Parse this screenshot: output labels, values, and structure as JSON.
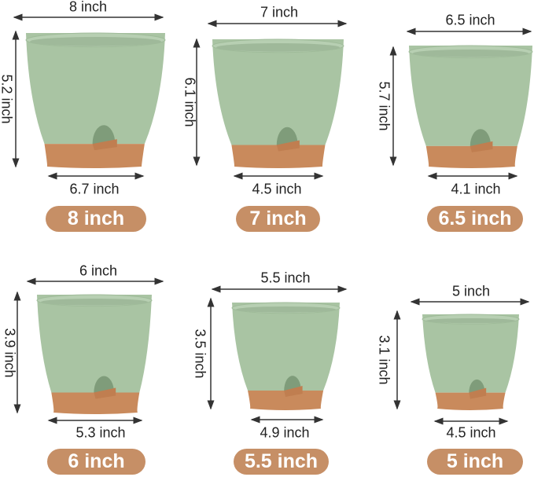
{
  "colors": {
    "pot_green": "#a9c4a3",
    "base_terracotta": "#c98a5c",
    "badge": "#c68f66",
    "arrow": "#333333"
  },
  "pots": [
    {
      "size_label": "8 inch",
      "top_diameter": "8 inch",
      "height": "5.2 inch",
      "bottom_diameter": "6.7 inch"
    },
    {
      "size_label": "7 inch",
      "top_diameter": "7 inch",
      "height": "6.1 inch",
      "bottom_diameter": "4.5 inch"
    },
    {
      "size_label": "6.5 inch",
      "top_diameter": "6.5 inch",
      "height": "5.7 inch",
      "bottom_diameter": "4.1 inch"
    },
    {
      "size_label": "6 inch",
      "top_diameter": "6 inch",
      "height": "3.9 inch",
      "bottom_diameter": "5.3 inch"
    },
    {
      "size_label": "5.5 inch",
      "top_diameter": "5.5 inch",
      "height": "3.5 inch",
      "bottom_diameter": "4.9 inch"
    },
    {
      "size_label": "5 inch",
      "top_diameter": "5 inch",
      "height": "3.1 inch",
      "bottom_diameter": "4.5 inch"
    }
  ]
}
